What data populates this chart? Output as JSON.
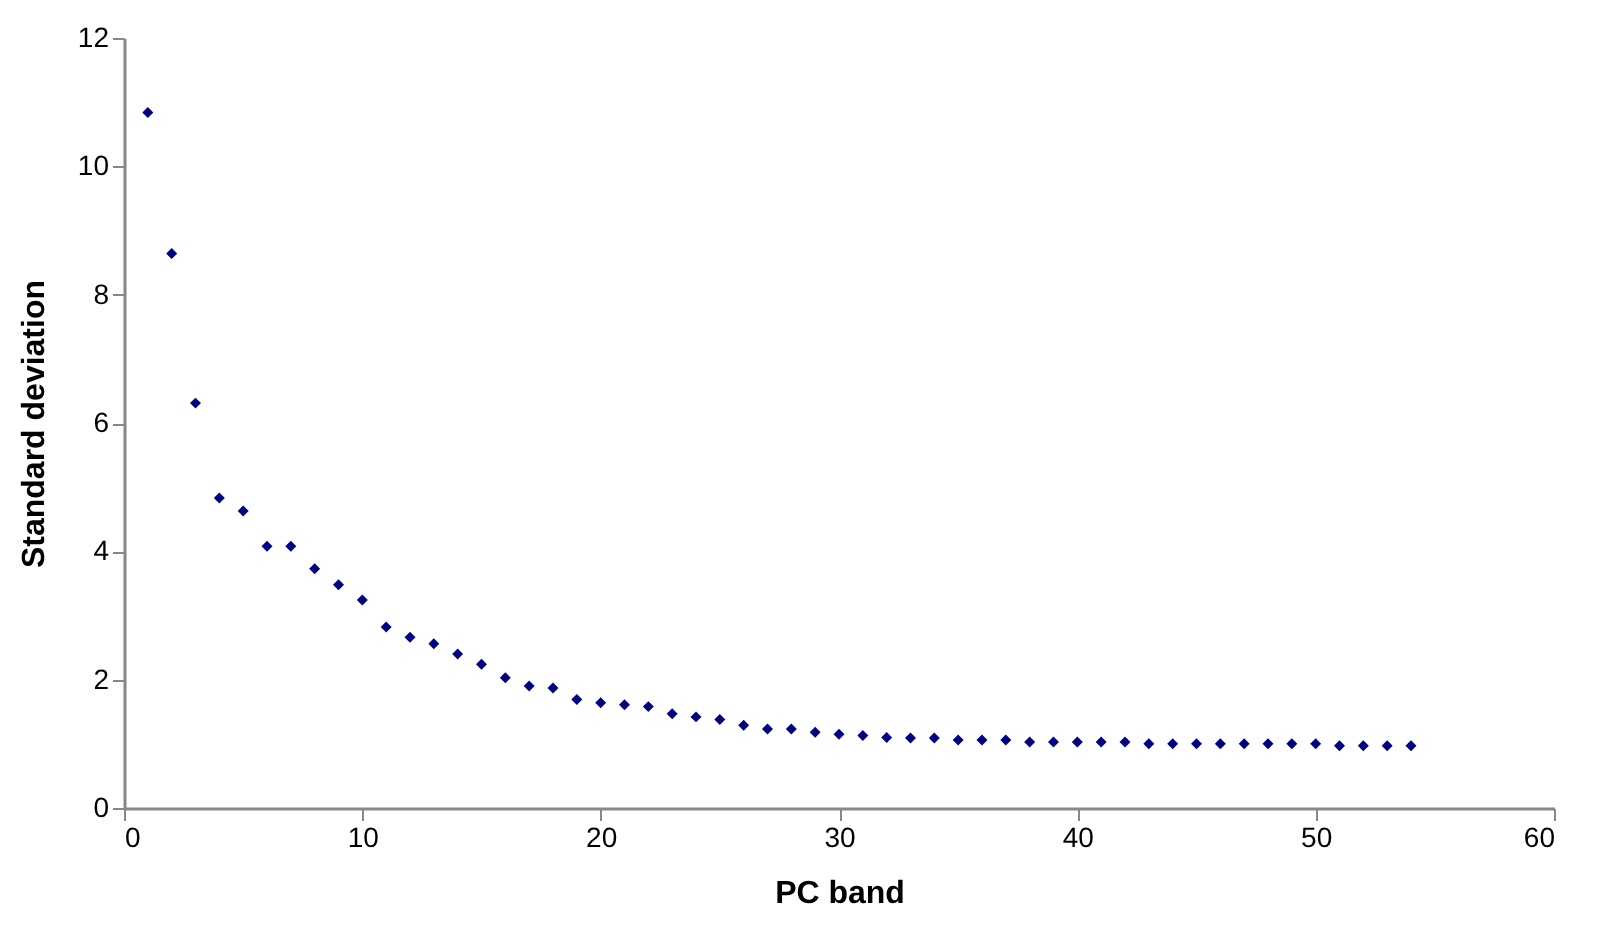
{
  "chart_data": {
    "type": "scatter",
    "xlabel": "PC band",
    "ylabel": "Standard deviation",
    "marker": "diamond",
    "grid": false,
    "xlim": [
      0,
      60
    ],
    "xticks": [
      0,
      10,
      20,
      30,
      40,
      50,
      60
    ],
    "ylim": [
      0,
      12
    ],
    "yticks": [
      0,
      2,
      4,
      6,
      8,
      10,
      12
    ],
    "x": [
      1,
      2,
      3,
      4,
      5,
      6,
      7,
      8,
      9,
      10,
      11,
      12,
      13,
      14,
      15,
      16,
      17,
      18,
      19,
      20,
      21,
      22,
      23,
      24,
      25,
      26,
      27,
      28,
      29,
      30,
      31,
      32,
      33,
      34,
      35,
      36,
      37,
      38,
      39,
      40,
      41,
      42,
      43,
      44,
      45,
      46,
      47,
      48,
      49,
      50,
      51,
      52,
      53,
      54
    ],
    "series": [
      {
        "color": "#000080",
        "values": [
          10.84,
          8.64,
          6.31,
          4.83,
          4.63,
          4.08,
          4.08,
          3.73,
          3.48,
          3.24,
          2.82,
          2.66,
          2.56,
          2.4,
          2.24,
          2.03,
          1.9,
          1.87,
          1.69,
          1.64,
          1.61,
          1.58,
          1.47,
          1.42,
          1.38,
          1.29,
          1.23,
          1.23,
          1.18,
          1.15,
          1.13,
          1.1,
          1.09,
          1.09,
          1.06,
          1.06,
          1.06,
          1.03,
          1.03,
          1.03,
          1.03,
          1.03,
          1.0,
          1.0,
          1.0,
          1.0,
          1.0,
          1.0,
          1.0,
          1.0,
          0.97,
          0.97,
          0.97,
          0.97
        ]
      }
    ]
  }
}
